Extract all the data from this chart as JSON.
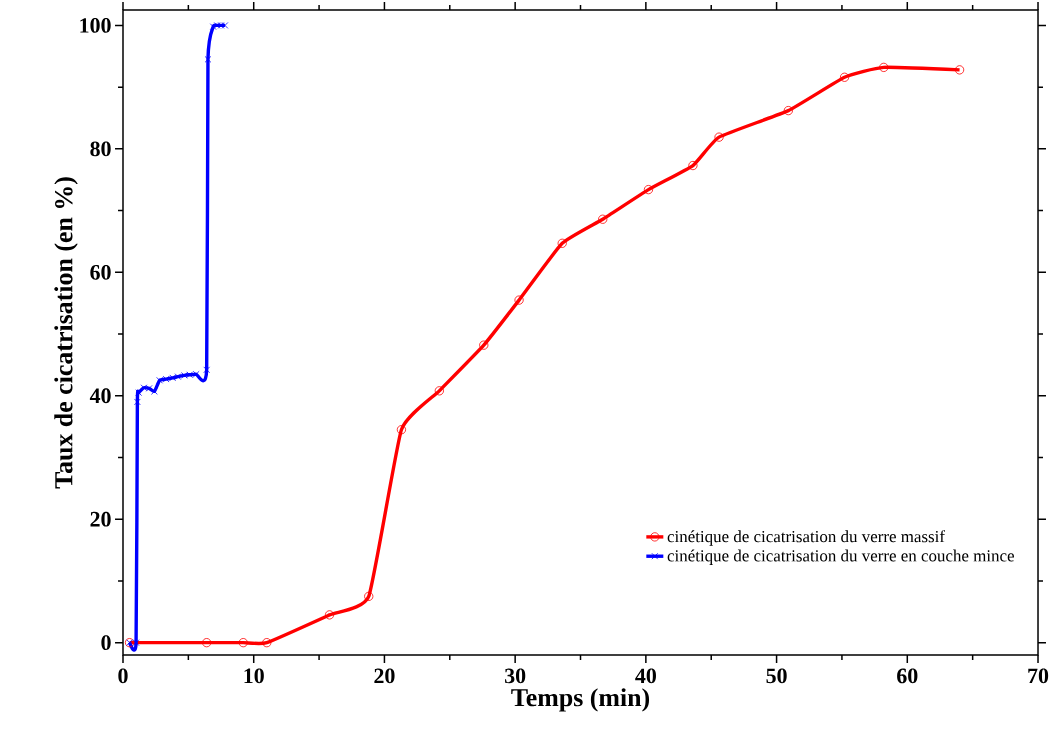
{
  "chart_data": {
    "type": "line",
    "xlabel": "Temps (min)",
    "ylabel": "Taux de cicatrisation (en %)",
    "xlim": [
      0,
      70
    ],
    "ylim": [
      -2,
      102.5
    ],
    "xticks": [
      0,
      10,
      20,
      30,
      40,
      50,
      60,
      70
    ],
    "yticks": [
      0,
      20,
      40,
      60,
      80,
      100
    ],
    "grid": false,
    "legend": "bottom right",
    "series": [
      {
        "name": "cinétique de cicatrisation du verre massif",
        "color": "#ff0000",
        "marker": "circle",
        "x": [
          0.5,
          6.4,
          9.2,
          11.0,
          15.8,
          18.8,
          21.3,
          24.2,
          27.6,
          30.3,
          33.6,
          36.7,
          40.2,
          43.6,
          45.6,
          50.9,
          55.2,
          58.2,
          64.0
        ],
        "values": [
          0,
          0,
          0,
          0,
          4.5,
          7.5,
          34.5,
          40.8,
          48.2,
          55.5,
          64.7,
          68.6,
          73.4,
          77.3,
          81.9,
          86.2,
          91.6,
          93.2,
          92.8
        ]
      },
      {
        "name": "cinétique de cicatrisation du verre en couche mince",
        "color": "#0000ff",
        "marker": "cross",
        "x": [
          0.5,
          1.0,
          1.1,
          1.2,
          1.6,
          2.0,
          2.4,
          2.8,
          3.3,
          3.8,
          4.2,
          4.7,
          5.1,
          5.6,
          6.4,
          6.5,
          6.9,
          7.2,
          7.5,
          7.8
        ],
        "values": [
          0,
          0,
          39,
          40.5,
          41.3,
          41.2,
          40.7,
          42.5,
          42.7,
          42.9,
          43.1,
          43.3,
          43.4,
          43.5,
          44.2,
          94.5,
          99.8,
          100,
          100,
          100
        ]
      }
    ]
  }
}
